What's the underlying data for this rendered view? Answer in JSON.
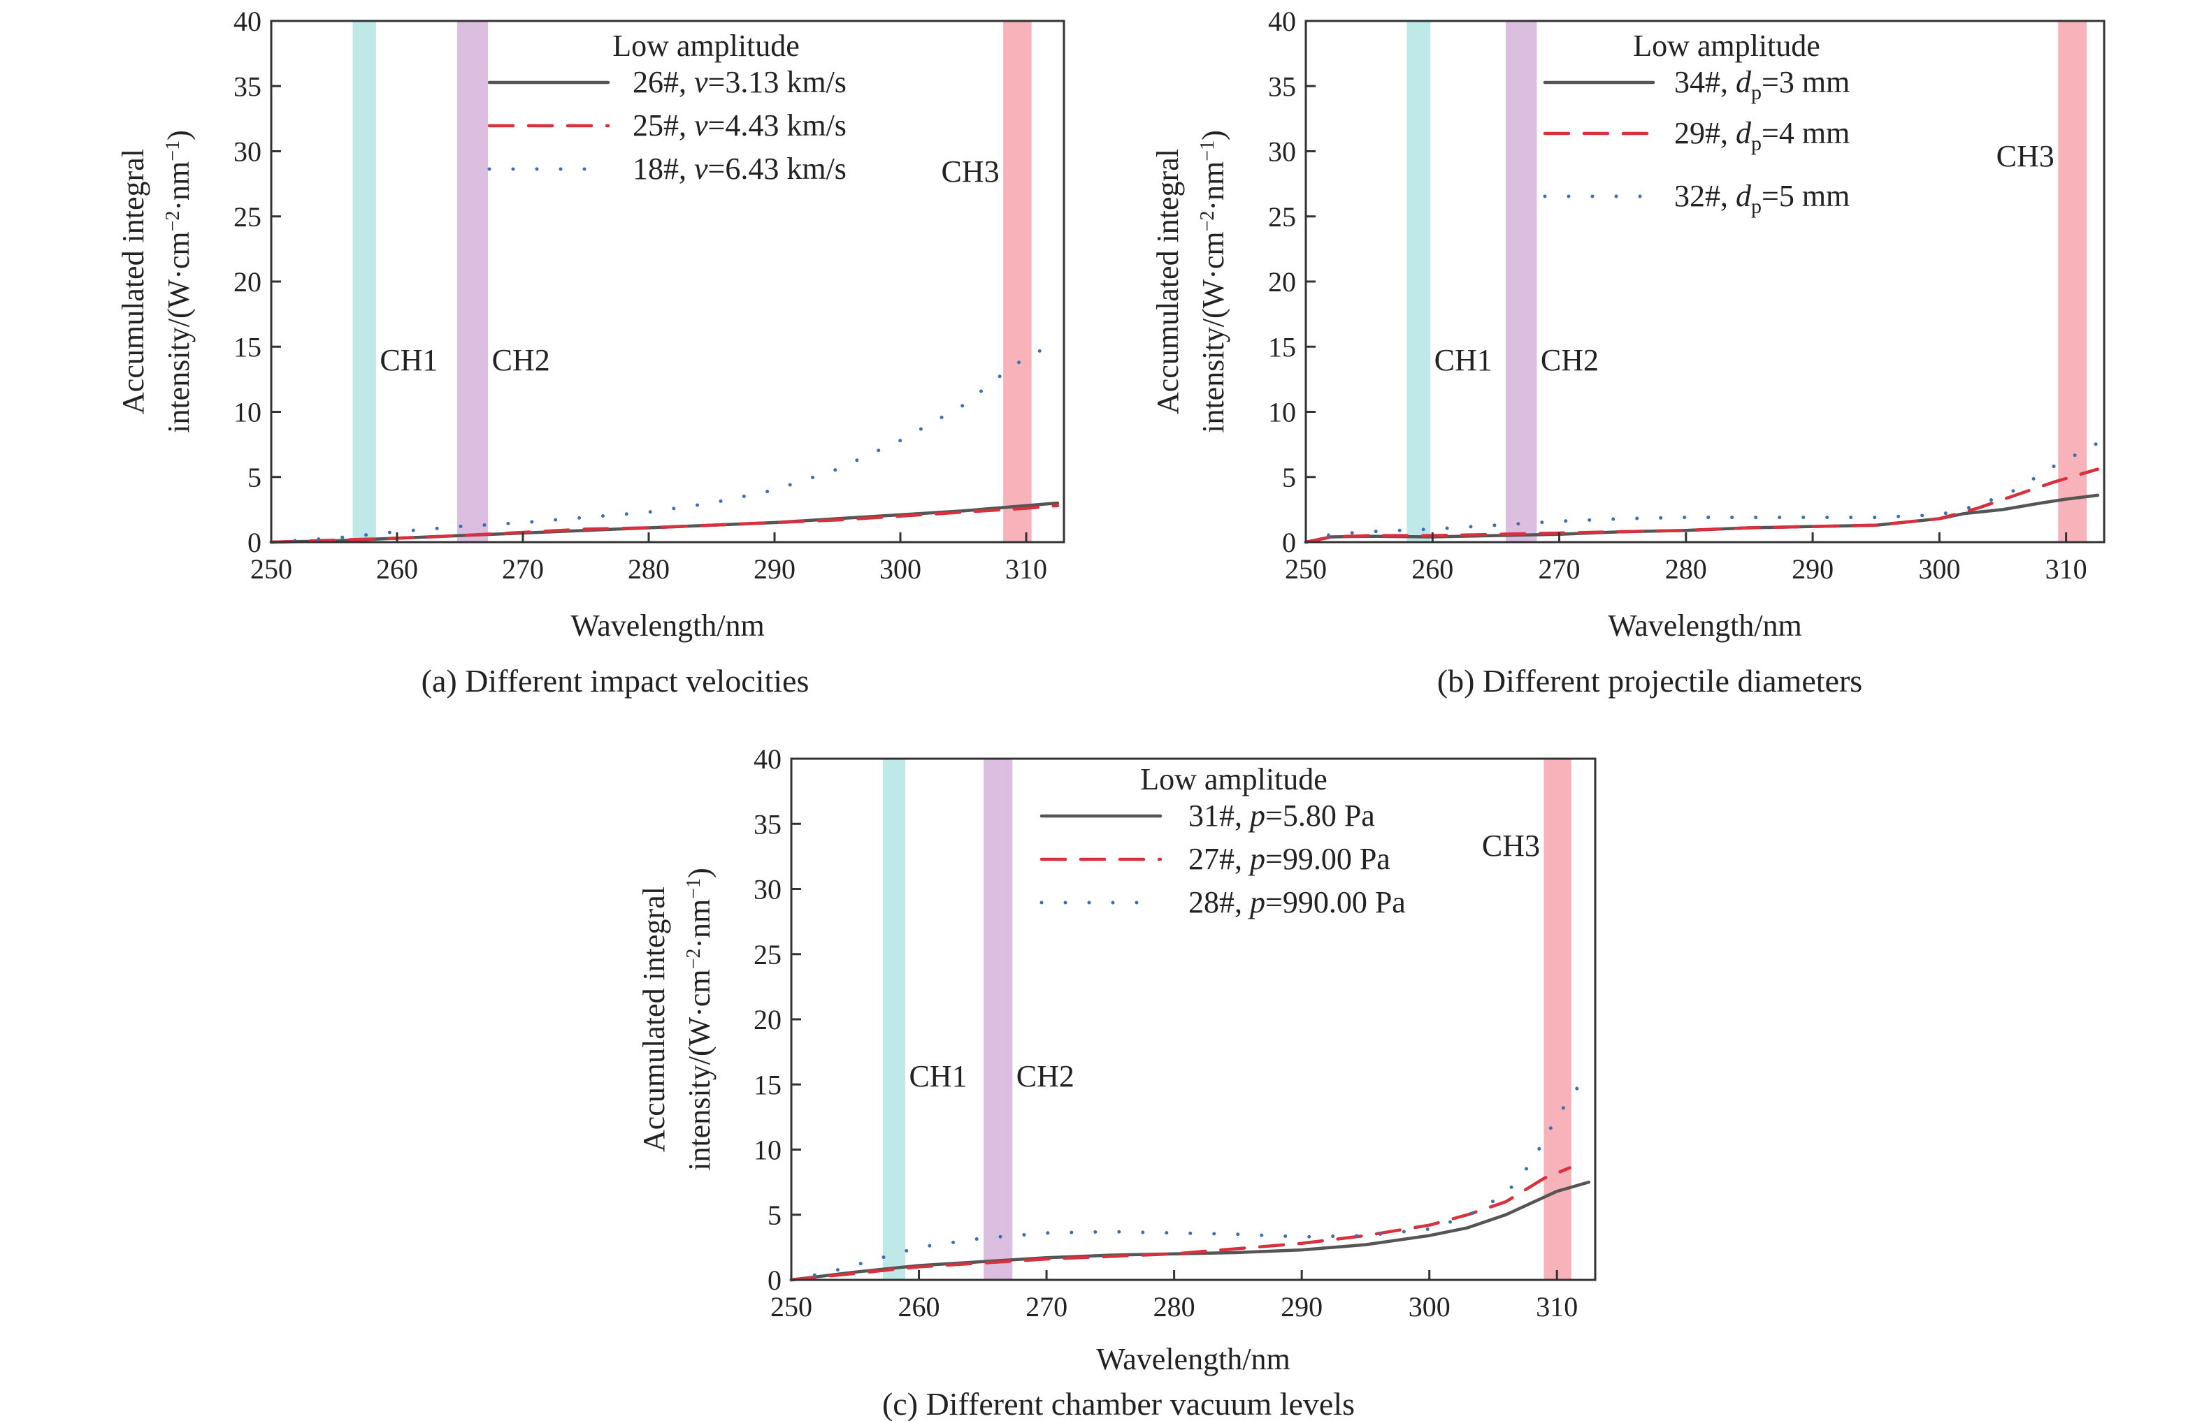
{
  "chart_data": [
    {
      "type": "line",
      "caption": "(a) Different impact velocities",
      "xlabel": "Wavelength/nm",
      "ylabel_line1": "Accumulated integral",
      "ylabel_line2": "intensity/(W·cm",
      "ylabel_unit_exp1": "−2",
      "ylabel_unit_mid": "·nm",
      "ylabel_unit_exp2": "−1",
      "ylabel_tail": ")",
      "xlim": [
        250,
        313
      ],
      "ylim": [
        0,
        40
      ],
      "xticks": [
        250,
        260,
        270,
        280,
        290,
        300,
        310
      ],
      "yticks": [
        0,
        5,
        10,
        15,
        20,
        25,
        30,
        35,
        40
      ],
      "grid": false,
      "legend_title": "Low amplitude",
      "legend_position": "top-center",
      "bands": [
        {
          "label": "CH1",
          "x0": 256.5,
          "x1": 258.3,
          "color": "#bfe8e8"
        },
        {
          "label": "CH2",
          "x0": 264.8,
          "x1": 267.2,
          "color": "#dcbfe0"
        },
        {
          "label": "CH3",
          "x0": 308.2,
          "x1": 310.4,
          "color": "#f7b3b9"
        }
      ],
      "series": [
        {
          "name_prefix": "26#, ",
          "name_var": "v",
          "name_suffix": "=3.13 km/s",
          "style": "solid",
          "color": "#555555",
          "x": [
            250,
            255,
            260,
            265,
            270,
            275,
            280,
            285,
            290,
            295,
            300,
            305,
            310,
            312.5
          ],
          "y": [
            0,
            0.1,
            0.3,
            0.5,
            0.7,
            0.9,
            1.1,
            1.3,
            1.5,
            1.8,
            2.1,
            2.4,
            2.8,
            3.0
          ]
        },
        {
          "name_prefix": "25#, ",
          "name_var": "v",
          "name_suffix": "=4.43 km/s",
          "style": "dashed",
          "color": "#d9303d",
          "x": [
            250,
            255,
            260,
            265,
            270,
            275,
            280,
            285,
            290,
            295,
            300,
            305,
            310,
            312.5
          ],
          "y": [
            0,
            0.15,
            0.3,
            0.5,
            0.75,
            1.0,
            1.1,
            1.3,
            1.5,
            1.7,
            2.0,
            2.3,
            2.6,
            2.8
          ]
        },
        {
          "name_prefix": "18#, ",
          "name_var": "v",
          "name_suffix": "=6.43 km/s",
          "style": "dotted",
          "color": "#3a6fb5",
          "x": [
            250,
            255,
            260,
            265,
            270,
            275,
            280,
            285,
            290,
            295,
            300,
            305,
            308,
            310,
            312.5
          ],
          "y": [
            0,
            0.3,
            0.8,
            1.2,
            1.5,
            1.9,
            2.3,
            3.0,
            4.0,
            5.6,
            7.8,
            10.5,
            12.8,
            14.2,
            15.3
          ]
        }
      ]
    },
    {
      "type": "line",
      "caption": "(b) Different projectile diameters",
      "xlabel": "Wavelength/nm",
      "ylabel_line1": "Accumulated integral",
      "ylabel_line2": "intensity/(W·cm",
      "ylabel_unit_exp1": "−2",
      "ylabel_unit_mid": "·nm",
      "ylabel_unit_exp2": "−1",
      "ylabel_tail": ")",
      "xlim": [
        250,
        313
      ],
      "ylim": [
        0,
        40
      ],
      "xticks": [
        250,
        260,
        270,
        280,
        290,
        300,
        310
      ],
      "yticks": [
        0,
        5,
        10,
        15,
        20,
        25,
        30,
        35,
        40
      ],
      "grid": false,
      "legend_title": "Low amplitude",
      "legend_position": "top-right",
      "bands": [
        {
          "label": "CH1",
          "x0": 258.0,
          "x1": 259.8,
          "color": "#bfe8e8"
        },
        {
          "label": "CH2",
          "x0": 265.8,
          "x1": 268.2,
          "color": "#dcbfe0"
        },
        {
          "label": "CH3",
          "x0": 309.4,
          "x1": 311.6,
          "color": "#f7b3b9"
        }
      ],
      "series": [
        {
          "name_prefix": "34#, ",
          "name_var": "d",
          "name_sub": "p",
          "name_suffix": "=3 mm",
          "style": "solid",
          "color": "#555555",
          "x": [
            250,
            252,
            255,
            260,
            265,
            270,
            275,
            280,
            285,
            290,
            295,
            300,
            302,
            305,
            308,
            310,
            312.5
          ],
          "y": [
            0,
            0.4,
            0.45,
            0.4,
            0.5,
            0.6,
            0.8,
            0.9,
            1.1,
            1.2,
            1.3,
            1.8,
            2.2,
            2.5,
            3.0,
            3.3,
            3.6
          ]
        },
        {
          "name_prefix": "29#, ",
          "name_var": "d",
          "name_sub": "p",
          "name_suffix": "=4 mm",
          "style": "dashed",
          "color": "#d9303d",
          "x": [
            250,
            252,
            255,
            260,
            265,
            270,
            275,
            280,
            285,
            290,
            295,
            300,
            303,
            306,
            309,
            312.5
          ],
          "y": [
            0,
            0.4,
            0.5,
            0.5,
            0.6,
            0.7,
            0.8,
            0.9,
            1.1,
            1.2,
            1.3,
            1.8,
            2.6,
            3.6,
            4.6,
            5.6
          ]
        },
        {
          "name_prefix": "32#, ",
          "name_var": "d",
          "name_sub": "p",
          "name_suffix": "=5 mm",
          "style": "dotted",
          "color": "#3a6fb5",
          "x": [
            250,
            252,
            255,
            260,
            265,
            270,
            275,
            280,
            285,
            290,
            295,
            300,
            303,
            306,
            309,
            312.5
          ],
          "y": [
            0,
            0.6,
            0.8,
            1.0,
            1.3,
            1.6,
            1.8,
            1.9,
            1.9,
            1.9,
            1.9,
            2.1,
            2.8,
            4.0,
            5.8,
            7.6
          ]
        }
      ]
    },
    {
      "type": "line",
      "caption": "(c) Different chamber vacuum levels",
      "xlabel": "Wavelength/nm",
      "ylabel_line1": "Accumulated integral",
      "ylabel_line2": "intensity/(W·cm",
      "ylabel_unit_exp1": "−2",
      "ylabel_unit_mid": "·nm",
      "ylabel_unit_exp2": "−1",
      "ylabel_tail": ")",
      "xlim": [
        250,
        313
      ],
      "ylim": [
        0,
        40
      ],
      "xticks": [
        250,
        260,
        270,
        280,
        290,
        300,
        310
      ],
      "yticks": [
        0,
        5,
        10,
        15,
        20,
        25,
        30,
        35,
        40
      ],
      "grid": false,
      "legend_title": "Low amplitude",
      "legend_position": "top-center",
      "bands": [
        {
          "label": "CH1",
          "x0": 257.2,
          "x1": 258.9,
          "color": "#bfe8e8"
        },
        {
          "label": "CH2",
          "x0": 265.1,
          "x1": 267.3,
          "color": "#dcbfe0"
        },
        {
          "label": "CH3",
          "x0": 309.0,
          "x1": 311.1,
          "color": "#f7b3b9"
        }
      ],
      "series": [
        {
          "name_prefix": "31#, ",
          "name_var": "p",
          "name_suffix": "=5.80 Pa",
          "style": "solid",
          "color": "#555555",
          "x": [
            250,
            255,
            260,
            265,
            270,
            275,
            280,
            285,
            290,
            295,
            300,
            303,
            306,
            308,
            310,
            312.5
          ],
          "y": [
            0,
            0.6,
            1.1,
            1.4,
            1.7,
            1.9,
            2.0,
            2.1,
            2.3,
            2.7,
            3.4,
            4.0,
            5.0,
            5.9,
            6.8,
            7.5
          ]
        },
        {
          "name_prefix": "27#, ",
          "name_var": "p",
          "name_suffix": "=99.00 Pa",
          "style": "dashed",
          "color": "#d9303d",
          "x": [
            250,
            255,
            260,
            265,
            270,
            275,
            280,
            285,
            290,
            295,
            300,
            303,
            306,
            309,
            311
          ],
          "y": [
            0,
            0.5,
            1.0,
            1.3,
            1.6,
            1.8,
            2.0,
            2.4,
            2.8,
            3.4,
            4.2,
            5.0,
            6.0,
            7.8,
            8.6
          ]
        },
        {
          "name_prefix": "28#, ",
          "name_var": "p",
          "name_suffix": "=990.00 Pa",
          "style": "dotted",
          "color": "#3a6fb5",
          "x": [
            250,
            253,
            256,
            260,
            265,
            270,
            275,
            280,
            285,
            290,
            295,
            300,
            303,
            306,
            308,
            310,
            312.5
          ],
          "y": [
            0,
            0.6,
            1.4,
            2.5,
            3.2,
            3.6,
            3.7,
            3.6,
            3.5,
            3.3,
            3.4,
            3.9,
            4.9,
            6.6,
            9.0,
            12.5,
            16.0
          ]
        }
      ]
    }
  ]
}
